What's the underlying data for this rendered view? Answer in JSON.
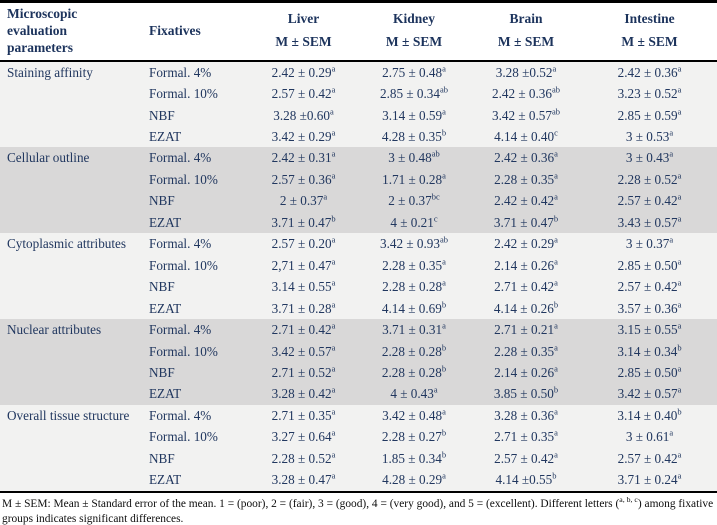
{
  "table": {
    "header": {
      "col_parameter": "Microscopic evaluation parameters",
      "col_fixatives": "Fixatives",
      "organs": [
        {
          "name": "Liver",
          "sub": "M ± SEM"
        },
        {
          "name": "Kidney",
          "sub": "M ± SEM"
        },
        {
          "name": "Brain",
          "sub": "M ± SEM"
        },
        {
          "name": "Intestine",
          "sub": "M ± SEM"
        }
      ]
    },
    "groups": [
      {
        "parameter": "Staining affinity",
        "rows": [
          {
            "fixative": "Formal. 4%",
            "cells": [
              {
                "v": "2.42 ± 0.29",
                "s": "a"
              },
              {
                "v": "2.75 ± 0.48",
                "s": "a"
              },
              {
                "v": "3.28 ±0.52",
                "s": "a"
              },
              {
                "v": "2.42 ± 0.36",
                "s": "a"
              }
            ]
          },
          {
            "fixative": "Formal. 10%",
            "cells": [
              {
                "v": "2.57 ± 0.42",
                "s": "a"
              },
              {
                "v": "2.85 ± 0.34",
                "s": "ab"
              },
              {
                "v": "2.42 ± 0.36",
                "s": "ab"
              },
              {
                "v": "3.23 ± 0.52",
                "s": "a"
              }
            ]
          },
          {
            "fixative": "NBF",
            "cells": [
              {
                "v": "3.28 ±0.60",
                "s": "a"
              },
              {
                "v": "3.14 ± 0.59",
                "s": "a"
              },
              {
                "v": "3.42 ± 0.57",
                "s": "ab"
              },
              {
                "v": "2.85 ± 0.59",
                "s": "a"
              }
            ]
          },
          {
            "fixative": "EZAT",
            "cells": [
              {
                "v": "3.42 ± 0.29",
                "s": "a"
              },
              {
                "v": "4.28 ± 0.35",
                "s": "b"
              },
              {
                "v": "4.14 ± 0.40",
                "s": "c"
              },
              {
                "v": "3 ± 0.53",
                "s": "a"
              }
            ]
          }
        ]
      },
      {
        "parameter": "Cellular outline",
        "rows": [
          {
            "fixative": "Formal. 4%",
            "cells": [
              {
                "v": "2.42 ± 0.31",
                "s": "a"
              },
              {
                "v": "3 ± 0.48",
                "s": "ab"
              },
              {
                "v": "2.42 ± 0.36",
                "s": "a"
              },
              {
                "v": "3 ± 0.43",
                "s": "a"
              }
            ]
          },
          {
            "fixative": "Formal. 10%",
            "cells": [
              {
                "v": "2.57 ± 0.36",
                "s": "a"
              },
              {
                "v": "1.71 ± 0.28",
                "s": "a"
              },
              {
                "v": "2.28 ± 0.35",
                "s": "a"
              },
              {
                "v": "2.28 ± 0.52",
                "s": "a"
              }
            ]
          },
          {
            "fixative": "NBF",
            "cells": [
              {
                "v": "2 ± 0.37",
                "s": "a"
              },
              {
                "v": "2 ± 0.37",
                "s": "bc"
              },
              {
                "v": "2.42 ± 0.42",
                "s": "a"
              },
              {
                "v": "2.57 ± 0.42",
                "s": "a"
              }
            ]
          },
          {
            "fixative": "EZAT",
            "cells": [
              {
                "v": "3.71 ± 0.47",
                "s": "b"
              },
              {
                "v": "4 ± 0.21",
                "s": "c"
              },
              {
                "v": "3.71 ± 0.47",
                "s": "b"
              },
              {
                "v": "3.43 ± 0.57",
                "s": "a"
              }
            ]
          }
        ]
      },
      {
        "parameter": "Cytoplasmic attributes",
        "rows": [
          {
            "fixative": "Formal. 4%",
            "cells": [
              {
                "v": "2.57 ± 0.20",
                "s": "a"
              },
              {
                "v": "3.42 ± 0.93",
                "s": "ab"
              },
              {
                "v": "2.42 ± 0.29",
                "s": "a"
              },
              {
                "v": "3 ± 0.37",
                "s": "a"
              }
            ]
          },
          {
            "fixative": "Formal. 10%",
            "cells": [
              {
                "v": "2,71 ± 0.47",
                "s": "a"
              },
              {
                "v": "2.28 ± 0.35",
                "s": "a"
              },
              {
                "v": "2.14 ± 0.26",
                "s": "a"
              },
              {
                "v": "2.85 ± 0.50",
                "s": "a"
              }
            ]
          },
          {
            "fixative": "NBF",
            "cells": [
              {
                "v": "3.14 ± 0.55",
                "s": "a"
              },
              {
                "v": "2.28 ± 0.28",
                "s": "a"
              },
              {
                "v": "2.71 ± 0.42",
                "s": "a"
              },
              {
                "v": "2.57 ± 0.42",
                "s": "a"
              }
            ]
          },
          {
            "fixative": "EZAT",
            "cells": [
              {
                "v": "3.71 ± 0.28",
                "s": "a"
              },
              {
                "v": "4.14 ± 0.69",
                "s": "b"
              },
              {
                "v": "4.14 ± 0.26",
                "s": "b"
              },
              {
                "v": "3.57 ± 0.36",
                "s": "a"
              }
            ]
          }
        ]
      },
      {
        "parameter": "Nuclear attributes",
        "rows": [
          {
            "fixative": "Formal. 4%",
            "cells": [
              {
                "v": "2.71 ± 0.42",
                "s": "a"
              },
              {
                "v": "3.71 ± 0.31",
                "s": "a"
              },
              {
                "v": "2.71 ± 0.21",
                "s": "a"
              },
              {
                "v": "3.15 ± 0.55",
                "s": "a"
              }
            ]
          },
          {
            "fixative": "Formal. 10%",
            "cells": [
              {
                "v": "3.42 ± 0.57",
                "s": "a"
              },
              {
                "v": "2.28 ± 0.28",
                "s": "b"
              },
              {
                "v": "2.28 ± 0.35",
                "s": "a"
              },
              {
                "v": "3.14 ± 0.34",
                "s": "b"
              }
            ]
          },
          {
            "fixative": "NBF",
            "cells": [
              {
                "v": "2.71 ± 0.52",
                "s": "a"
              },
              {
                "v": "2.28 ± 0.28",
                "s": "b"
              },
              {
                "v": "2.14 ± 0.26",
                "s": "a"
              },
              {
                "v": "2.85 ± 0.50",
                "s": "a"
              }
            ]
          },
          {
            "fixative": "EZAT",
            "cells": [
              {
                "v": "3.28 ± 0.42",
                "s": "a"
              },
              {
                "v": "4 ± 0.43",
                "s": "a"
              },
              {
                "v": "3.85 ± 0.50",
                "s": "b"
              },
              {
                "v": "3.42 ± 0.57",
                "s": "a"
              }
            ]
          }
        ]
      },
      {
        "parameter": "Overall tissue structure",
        "rows": [
          {
            "fixative": "Formal. 4%",
            "cells": [
              {
                "v": "2.71 ± 0.35",
                "s": "a"
              },
              {
                "v": "3.42 ± 0.48",
                "s": "a"
              },
              {
                "v": "3.28 ± 0.36",
                "s": "a"
              },
              {
                "v": "3.14 ± 0.40",
                "s": "b"
              }
            ]
          },
          {
            "fixative": "Formal. 10%",
            "cells": [
              {
                "v": "3.27 ± 0.64",
                "s": "a"
              },
              {
                "v": "2.28 ± 0.27",
                "s": "b"
              },
              {
                "v": "2.71 ± 0.35",
                "s": "a"
              },
              {
                "v": "3 ± 0.61",
                "s": "a"
              }
            ]
          },
          {
            "fixative": "NBF",
            "cells": [
              {
                "v": "2.28 ± 0.52",
                "s": "a"
              },
              {
                "v": "1.85 ± 0.34",
                "s": "b"
              },
              {
                "v": "2.57 ± 0.42",
                "s": "a"
              },
              {
                "v": "2.57 ± 0.42",
                "s": "a"
              }
            ]
          },
          {
            "fixative": "EZAT",
            "cells": [
              {
                "v": "3.28 ± 0.47",
                "s": "a"
              },
              {
                "v": "4.28 ± 0.29",
                "s": "a"
              },
              {
                "v": "4.14 ±0.55",
                "s": "b"
              },
              {
                "v": "3.71 ± 0.24",
                "s": "a"
              }
            ]
          }
        ]
      }
    ]
  },
  "footnote": {
    "pre": "M ± SEM: Mean ± Standard error of the mean. 1 = (poor), 2 = (fair), 3 = (good), 4 = (very good), and 5 = (excellent). Different letters (",
    "sup": "a, b, c",
    "post": ") among fixative groups indicates significant differences."
  },
  "colors": {
    "header_text": "#1c335c",
    "body_text": "#21375f",
    "row_light": "#f2f2f1",
    "row_shade": "#d9d8d8",
    "border": "#000000"
  }
}
